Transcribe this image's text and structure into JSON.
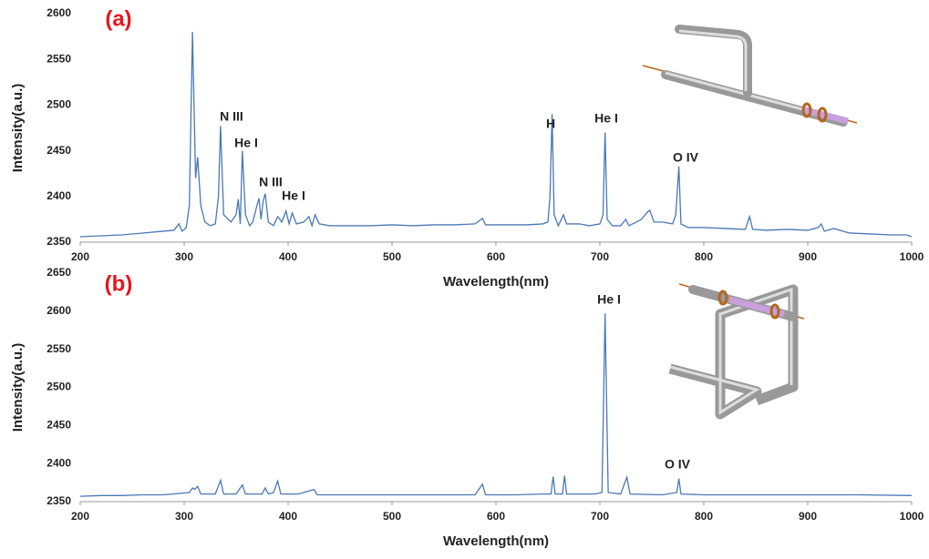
{
  "chart_data": [
    {
      "type": "line",
      "panel_label": "(a)",
      "x_label": "Wavelength(nm)",
      "y_label": "Intensity(a.u.)",
      "color": "#4a78b5",
      "annotations": [
        "N III",
        "He I",
        "N III",
        "He I",
        "H",
        "He I",
        "O IV"
      ],
      "xlim": [
        200,
        1000
      ],
      "xticks": [
        200,
        300,
        400,
        500,
        600,
        700,
        800,
        900,
        1000
      ],
      "ylim": [
        2350,
        2600
      ],
      "yticks": [
        2350,
        2400,
        2450,
        2500,
        2550,
        2600
      ],
      "x": [
        200,
        220,
        240,
        260,
        280,
        290,
        295,
        298,
        302,
        305,
        308,
        311,
        313,
        316,
        320,
        325,
        330,
        333,
        335,
        338,
        345,
        350,
        352,
        354,
        356,
        359,
        363,
        366,
        370,
        372,
        374,
        376,
        378,
        381,
        386,
        390,
        394,
        398,
        401,
        404,
        408,
        415,
        420,
        423,
        426,
        430,
        440,
        460,
        480,
        500,
        520,
        540,
        560,
        580,
        587,
        590,
        610,
        630,
        645,
        650,
        652,
        654,
        656,
        660,
        665,
        668,
        680,
        690,
        700,
        703,
        705,
        707,
        712,
        720,
        725,
        728,
        735,
        740,
        745,
        748,
        752,
        760,
        770,
        773,
        776,
        778,
        785,
        800,
        820,
        840,
        844,
        847,
        860,
        880,
        900,
        910,
        913,
        916,
        925,
        940,
        960,
        980,
        995,
        1000
      ],
      "values": [
        2356,
        2357,
        2358,
        2360,
        2362,
        2363,
        2370,
        2362,
        2366,
        2390,
        2580,
        2420,
        2443,
        2390,
        2372,
        2368,
        2370,
        2400,
        2477,
        2380,
        2372,
        2380,
        2397,
        2370,
        2450,
        2380,
        2368,
        2372,
        2390,
        2398,
        2375,
        2395,
        2403,
        2372,
        2368,
        2378,
        2372,
        2384,
        2370,
        2382,
        2370,
        2372,
        2378,
        2368,
        2380,
        2370,
        2368,
        2368,
        2368,
        2369,
        2368,
        2369,
        2369,
        2370,
        2376,
        2369,
        2369,
        2369,
        2370,
        2372,
        2400,
        2490,
        2380,
        2368,
        2380,
        2370,
        2370,
        2368,
        2370,
        2380,
        2470,
        2375,
        2368,
        2368,
        2375,
        2368,
        2372,
        2375,
        2382,
        2385,
        2372,
        2372,
        2370,
        2380,
        2433,
        2370,
        2366,
        2366,
        2365,
        2364,
        2378,
        2364,
        2363,
        2364,
        2363,
        2366,
        2370,
        2362,
        2365,
        2360,
        2359,
        2358,
        2358,
        2356
      ]
    },
    {
      "type": "line",
      "panel_label": "(b)",
      "x_label": "Wavelength(nm)",
      "y_label": "Intensity(a.u.)",
      "color": "#4a78b5",
      "annotations": [
        "He I",
        "O IV"
      ],
      "xlim": [
        200,
        1000
      ],
      "xticks": [
        200,
        300,
        400,
        500,
        600,
        700,
        800,
        900,
        1000
      ],
      "ylim": [
        2350,
        2650
      ],
      "yticks": [
        2350,
        2400,
        2450,
        2500,
        2550,
        2600,
        2650
      ],
      "x": [
        200,
        220,
        240,
        260,
        280,
        305,
        308,
        310,
        313,
        316,
        330,
        335,
        338,
        350,
        356,
        359,
        375,
        378,
        381,
        386,
        390,
        393,
        410,
        425,
        428,
        450,
        500,
        550,
        580,
        587,
        590,
        620,
        645,
        653,
        655,
        657,
        664,
        666,
        668,
        695,
        702,
        705,
        708,
        720,
        726,
        729,
        760,
        774,
        776,
        778,
        800,
        850,
        900,
        950,
        1000
      ],
      "values": [
        2357,
        2358,
        2358,
        2359,
        2359,
        2362,
        2368,
        2366,
        2370,
        2360,
        2360,
        2378,
        2360,
        2360,
        2372,
        2360,
        2360,
        2368,
        2360,
        2362,
        2377,
        2360,
        2360,
        2366,
        2359,
        2359,
        2359,
        2359,
        2359,
        2373,
        2359,
        2359,
        2360,
        2360,
        2383,
        2360,
        2360,
        2384,
        2360,
        2360,
        2362,
        2597,
        2362,
        2360,
        2382,
        2360,
        2359,
        2362,
        2380,
        2360,
        2359,
        2359,
        2359,
        2359,
        2358
      ]
    }
  ]
}
